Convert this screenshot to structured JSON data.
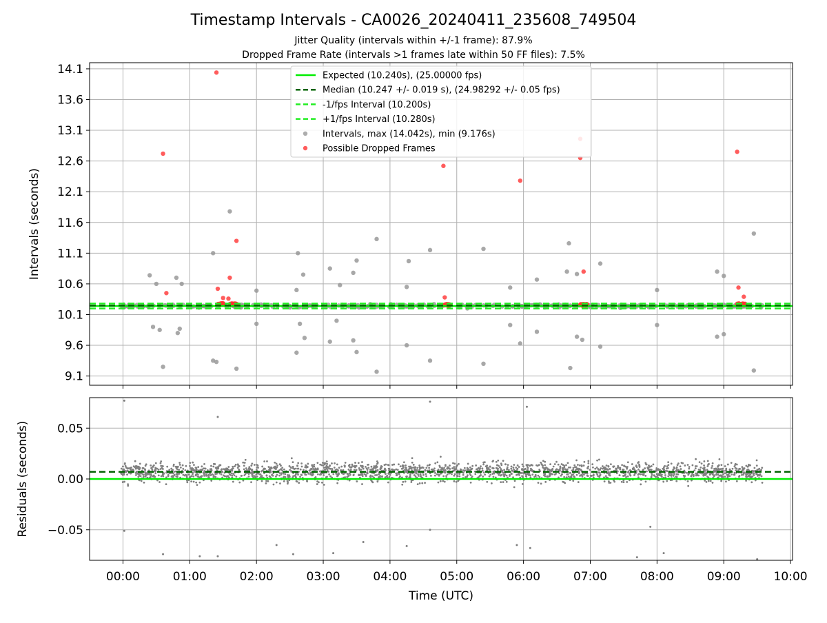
{
  "chart_data": [
    {
      "type": "scatter",
      "title": "Timestamp Intervals - CA0026_20240411_235608_749504",
      "subtitle_lines": [
        "Jitter Quality (intervals within +/-1 frame): 87.9%",
        "Dropped Frame Rate (intervals >1 frames late within 50 FF files): 7.5%"
      ],
      "xlabel": "",
      "ylabel": "Intervals (seconds)",
      "xlim": [
        -0.5,
        10.03
      ],
      "ylim": [
        8.95,
        14.2
      ],
      "yticks": [
        9.1,
        9.6,
        10.1,
        10.6,
        11.1,
        11.6,
        12.1,
        12.6,
        13.1,
        13.6,
        14.1
      ],
      "ytick_labels": [
        "9.1",
        "9.6",
        "10.1",
        "10.6",
        "11.1",
        "11.6",
        "12.1",
        "12.6",
        "13.1",
        "13.6",
        "14.1"
      ],
      "grid": true,
      "legend_position": "upper-center",
      "lines": [
        {
          "name": "Expected (10.240s), (25.00000 fps)",
          "y": 10.24,
          "style": "solid",
          "color": "#00ee00"
        },
        {
          "name": "Median (10.247 +/- 0.019 s), (24.98292 +/- 0.05 fps)",
          "y": 10.247,
          "style": "dashed",
          "color": "#006400"
        },
        {
          "name": "-1/fps Interval (10.200s)",
          "y": 10.2,
          "style": "dashed",
          "color": "#22ee22"
        },
        {
          "name": "+1/fps Interval (10.280s)",
          "y": 10.28,
          "style": "dashed",
          "color": "#22ee22"
        }
      ],
      "series": [
        {
          "name": "Intervals, max (14.042s), min (9.176s)",
          "color": "#999999",
          "points": [
            [
              0.4,
              10.74
            ],
            [
              0.45,
              9.9
            ],
            [
              0.5,
              10.6
            ],
            [
              0.55,
              9.85
            ],
            [
              0.6,
              9.25
            ],
            [
              0.8,
              10.7
            ],
            [
              0.82,
              9.8
            ],
            [
              0.85,
              9.87
            ],
            [
              0.88,
              10.6
            ],
            [
              1.35,
              11.1
            ],
            [
              1.35,
              9.35
            ],
            [
              1.4,
              9.33
            ],
            [
              1.6,
              11.78
            ],
            [
              1.7,
              9.22
            ],
            [
              2.0,
              9.95
            ],
            [
              2.0,
              10.49
            ],
            [
              2.6,
              10.5
            ],
            [
              2.6,
              9.48
            ],
            [
              2.62,
              11.1
            ],
            [
              2.65,
              9.95
            ],
            [
              2.7,
              10.75
            ],
            [
              2.72,
              9.72
            ],
            [
              3.1,
              10.85
            ],
            [
              3.1,
              9.66
            ],
            [
              3.2,
              10.0
            ],
            [
              3.25,
              10.58
            ],
            [
              3.45,
              10.78
            ],
            [
              3.45,
              9.68
            ],
            [
              3.5,
              10.98
            ],
            [
              3.5,
              9.49
            ],
            [
              3.8,
              11.33
            ],
            [
              3.8,
              9.17
            ],
            [
              4.25,
              10.55
            ],
            [
              4.25,
              9.6
            ],
            [
              4.28,
              10.97
            ],
            [
              4.6,
              11.15
            ],
            [
              4.6,
              9.35
            ],
            [
              5.4,
              11.17
            ],
            [
              5.4,
              9.3
            ],
            [
              5.8,
              10.54
            ],
            [
              5.8,
              9.93
            ],
            [
              5.95,
              9.63
            ],
            [
              6.2,
              10.67
            ],
            [
              6.2,
              9.82
            ],
            [
              6.65,
              10.8
            ],
            [
              6.68,
              11.26
            ],
            [
              6.7,
              9.23
            ],
            [
              6.8,
              10.76
            ],
            [
              6.8,
              9.74
            ],
            [
              6.88,
              9.69
            ],
            [
              7.15,
              10.93
            ],
            [
              7.15,
              9.58
            ],
            [
              8.0,
              10.5
            ],
            [
              8.0,
              9.93
            ],
            [
              8.9,
              10.8
            ],
            [
              8.9,
              9.74
            ],
            [
              9.0,
              10.73
            ],
            [
              9.0,
              9.78
            ],
            [
              9.45,
              11.42
            ],
            [
              9.45,
              9.19
            ]
          ],
          "band": {
            "x_range": [
              -0.03,
              9.58
            ],
            "y_range": [
              10.08,
              10.38
            ],
            "description": "dense cluster of grey interval points along 10.1-10.35 s"
          }
        },
        {
          "name": "Possible Dropped Frames",
          "color": "#ff3333",
          "points": [
            [
              0.6,
              12.72
            ],
            [
              0.65,
              10.45
            ],
            [
              1.4,
              14.04
            ],
            [
              1.42,
              10.52
            ],
            [
              1.6,
              10.7
            ],
            [
              1.7,
              11.3
            ],
            [
              4.8,
              12.52
            ],
            [
              4.82,
              10.38
            ],
            [
              5.95,
              12.28
            ],
            [
              6.85,
              12.65
            ],
            [
              6.85,
              12.96
            ],
            [
              6.9,
              10.8
            ],
            [
              9.2,
              12.75
            ],
            [
              9.22,
              10.54
            ],
            [
              9.3,
              10.39
            ],
            [
              1.5,
              10.37
            ],
            [
              1.58,
              10.36
            ]
          ],
          "clusters": [
            {
              "x_range": [
                1.4,
                1.5
              ],
              "y": 10.27
            },
            {
              "x_range": [
                1.6,
                1.72
              ],
              "y": 10.27
            },
            {
              "x_range": [
                4.8,
                4.9
              ],
              "y": 10.26
            },
            {
              "x_range": [
                6.85,
                6.95
              ],
              "y": 10.26
            },
            {
              "x_range": [
                9.2,
                9.32
              ],
              "y": 10.27
            }
          ]
        }
      ]
    },
    {
      "type": "scatter",
      "xlabel": "Time (UTC)",
      "ylabel": "Residuals (seconds)",
      "xlim": [
        -0.5,
        10.03
      ],
      "ylim": [
        -0.08,
        0.08
      ],
      "xticks": [
        0,
        1,
        2,
        3,
        4,
        5,
        6,
        7,
        8,
        9,
        10
      ],
      "xtick_labels": [
        "00:00",
        "01:00",
        "02:00",
        "03:00",
        "04:00",
        "05:00",
        "06:00",
        "07:00",
        "08:00",
        "09:00",
        "10:00"
      ],
      "yticks": [
        -0.05,
        0.0,
        0.05
      ],
      "ytick_labels": [
        "−0.05",
        "0.00",
        "0.05"
      ],
      "grid": true,
      "lines": [
        {
          "y": 0.0,
          "style": "solid",
          "color": "#00ee00"
        },
        {
          "y": 0.007,
          "style": "dashed",
          "color": "#006400"
        }
      ],
      "series": [
        {
          "color": "#808080",
          "band": {
            "x_range": [
              -0.03,
              9.58
            ],
            "y_range": [
              -0.03,
              0.045
            ],
            "description": "dense residual scatter centered near 0.005 s"
          },
          "outliers": [
            [
              0.02,
              0.077
            ],
            [
              0.02,
              -0.051
            ],
            [
              0.6,
              -0.074
            ],
            [
              1.15,
              -0.076
            ],
            [
              1.42,
              0.061
            ],
            [
              1.42,
              -0.076
            ],
            [
              2.3,
              -0.065
            ],
            [
              2.55,
              -0.074
            ],
            [
              3.15,
              -0.073
            ],
            [
              3.6,
              -0.062
            ],
            [
              4.25,
              -0.066
            ],
            [
              4.6,
              0.076
            ],
            [
              4.6,
              -0.05
            ],
            [
              5.9,
              -0.065
            ],
            [
              6.05,
              0.071
            ],
            [
              6.1,
              -0.068
            ],
            [
              7.7,
              -0.077
            ],
            [
              7.9,
              -0.047
            ],
            [
              8.1,
              -0.073
            ],
            [
              9.5,
              -0.079
            ]
          ]
        }
      ]
    }
  ],
  "legend": [
    {
      "label": "Expected (10.240s), (25.00000 fps)",
      "kind": "solid-line",
      "color": "#00ee00"
    },
    {
      "label": "Median (10.247 +/- 0.019 s), (24.98292 +/- 0.05 fps)",
      "kind": "dashed-line",
      "color": "#006400"
    },
    {
      "label": "-1/fps Interval (10.200s)",
      "kind": "dashed-line",
      "color": "#22ee22"
    },
    {
      "label": "+1/fps Interval (10.280s)",
      "kind": "dashed-line",
      "color": "#22ee22"
    },
    {
      "label": "Intervals, max (14.042s), min (9.176s)",
      "kind": "marker",
      "color": "#999999"
    },
    {
      "label": "Possible Dropped Frames",
      "kind": "marker",
      "color": "#ff3333"
    }
  ]
}
